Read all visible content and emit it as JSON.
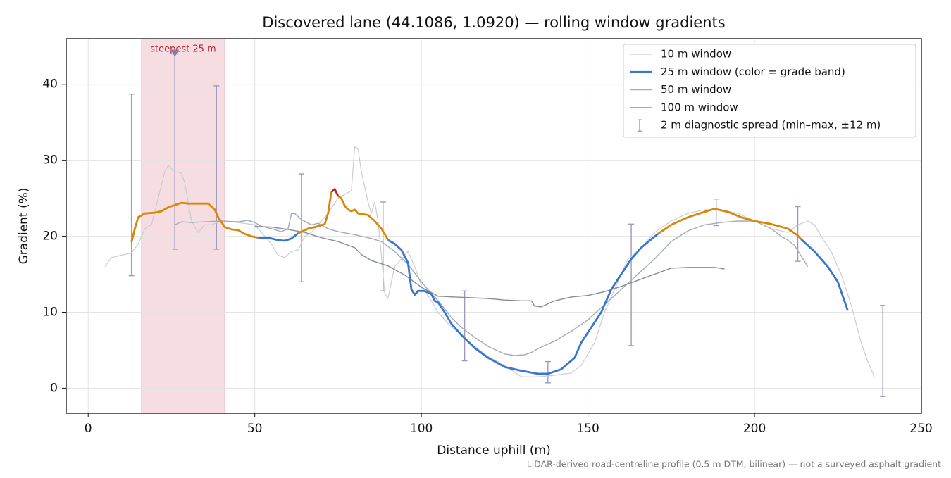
{
  "chart_data": {
    "type": "line",
    "title": "Discovered lane (44.1086, 1.0920) — rolling window gradients",
    "x_label": "Distance uphill (m)",
    "y_label": "Gradient (%)",
    "footnote": "LiDAR-derived road-centreline profile (0.5 m DTM, bilinear) — not a surveyed asphalt gradient",
    "xlim": [
      -6.6,
      250.1
    ],
    "ylim": [
      -3.3,
      46
    ],
    "xticks": [
      0,
      50,
      100,
      150,
      200,
      250
    ],
    "yticks": [
      0,
      10,
      20,
      30,
      40
    ],
    "grid": true,
    "legend": "upper right",
    "highlight": {
      "label": "steepest 25 m",
      "x": [
        16,
        41
      ],
      "color": "#e8b4bd",
      "marker_x": 26,
      "marker_y": 44,
      "marker_color": "#8c7aa0"
    },
    "series": [
      {
        "name": "10 m window",
        "color": "#c8ccd4",
        "width": 1.2,
        "x": [
          5,
          7,
          10,
          13,
          15,
          17,
          19,
          21,
          23,
          24,
          26,
          28,
          29,
          31,
          33,
          35,
          37,
          40,
          45,
          50,
          53,
          55,
          57,
          59,
          61,
          63,
          65,
          67,
          69,
          72,
          75,
          77,
          79,
          80,
          81,
          82,
          84,
          85,
          86,
          87,
          88,
          89,
          90,
          91,
          92,
          94,
          96,
          98,
          100,
          103,
          105,
          108,
          112,
          116,
          120,
          125,
          130,
          135,
          140,
          145,
          148,
          150,
          152,
          155,
          158,
          162,
          165,
          170,
          175,
          180,
          185,
          190,
          195,
          200,
          205,
          210,
          213,
          216,
          218,
          220,
          223,
          226,
          229,
          232,
          234,
          236
        ],
        "values": [
          16,
          17.2,
          17.5,
          17.8,
          19,
          21,
          21.5,
          25,
          28.5,
          29.3,
          28.5,
          28.3,
          27,
          22,
          20.5,
          21.5,
          21.5,
          22,
          21.8,
          21.5,
          20,
          19,
          17.5,
          17.2,
          18,
          18.2,
          20,
          20.5,
          21.5,
          23,
          25,
          25.5,
          26,
          31.8,
          31.5,
          28.5,
          24.5,
          23,
          24.5,
          22,
          17.5,
          12.5,
          11.8,
          14,
          16,
          17,
          18,
          16,
          13.5,
          11.5,
          10,
          8.5,
          7,
          5.5,
          4.2,
          3,
          1.5,
          1.5,
          1.7,
          2,
          3,
          4.5,
          6,
          10,
          13,
          17,
          18,
          20.5,
          22,
          23,
          23.5,
          23.5,
          23,
          22,
          21,
          20.5,
          21.5,
          22,
          21.5,
          20,
          18,
          15,
          11,
          6,
          3.5,
          1.5
        ]
      },
      {
        "name": "25 m window (color = grade band)",
        "color": "#3a75d0",
        "width": 2.8,
        "x": [
          13,
          14,
          15,
          17,
          20,
          22,
          24,
          26,
          28,
          30,
          33,
          36,
          38,
          39,
          41,
          43,
          45,
          47,
          49,
          51,
          54,
          57,
          59,
          61,
          63,
          66,
          69,
          71,
          72,
          73,
          74,
          75,
          76,
          77,
          78,
          79,
          80,
          81,
          84,
          86,
          88,
          89,
          90,
          92,
          94,
          96,
          97,
          98,
          99,
          101,
          103,
          104,
          105,
          107,
          109,
          112,
          116,
          120,
          125,
          130,
          135,
          138,
          142,
          146,
          148,
          151,
          154,
          157,
          160,
          163,
          166,
          169,
          171,
          175,
          180,
          185,
          188,
          192,
          196,
          200,
          205,
          210,
          213,
          214,
          218,
          222,
          225,
          228
        ],
        "values": [
          19.2,
          21,
          22.5,
          23,
          23.1,
          23.3,
          23.8,
          24.1,
          24.4,
          24.3,
          24.3,
          24.3,
          23.5,
          22.5,
          21.2,
          20.9,
          20.8,
          20.3,
          20,
          19.8,
          19.8,
          19.5,
          19.4,
          19.7,
          20.4,
          21,
          21.3,
          21.6,
          23,
          25.8,
          26.2,
          25.3,
          25,
          24,
          23.5,
          23.3,
          23.5,
          23,
          22.8,
          22,
          21,
          20.3,
          19.5,
          19,
          18.2,
          16.5,
          13,
          12.3,
          12.8,
          12.8,
          12.4,
          11.5,
          11.3,
          10,
          8.5,
          7,
          5.3,
          4,
          2.8,
          2.3,
          1.9,
          1.9,
          2.5,
          4,
          6,
          8,
          10,
          13,
          15,
          17,
          18.5,
          19.6,
          20.3,
          21.5,
          22.5,
          23.2,
          23.6,
          23.2,
          22.5,
          22,
          21.6,
          21,
          20.1,
          19.6,
          18,
          16,
          14,
          10.2
        ],
        "colors": [
          "#d9860a",
          "#d9860a",
          "#d9860a",
          "#d9860a",
          "#d9860a",
          "#d9860a",
          "#d9860a",
          "#d9860a",
          "#d9860a",
          "#d9860a",
          "#d9860a",
          "#d9860a",
          "#d9860a",
          "#d9860a",
          "#d9860a",
          "#d9860a",
          "#d9860a",
          "#d9860a",
          "#d9860a",
          "#3a75d0",
          "#3a75d0",
          "#3a75d0",
          "#3a75d0",
          "#3a75d0",
          "#d9860a",
          "#d9860a",
          "#d9860a",
          "#d9860a",
          "#d9860a",
          "#c0202a",
          "#c0202a",
          "#d9860a",
          "#d9860a",
          "#d9860a",
          "#d9860a",
          "#d9860a",
          "#d9860a",
          "#d9860a",
          "#d9860a",
          "#d9860a",
          "#d9860a",
          "#d9860a",
          "#3a75d0",
          "#3a75d0",
          "#3a75d0",
          "#3a75d0",
          "#3a75d0",
          "#3a75d0",
          "#3a75d0",
          "#3a75d0",
          "#3a75d0",
          "#3a75d0",
          "#3a75d0",
          "#3a75d0",
          "#3a75d0",
          "#3a75d0",
          "#3a75d0",
          "#3a75d0",
          "#3a75d0",
          "#3a75d0",
          "#3a75d0",
          "#3a75d0",
          "#3a75d0",
          "#3a75d0",
          "#3a75d0",
          "#3a75d0",
          "#3a75d0",
          "#3a75d0",
          "#3a75d0",
          "#3a75d0",
          "#3a75d0",
          "#3a75d0",
          "#d9860a",
          "#d9860a",
          "#d9860a",
          "#d9860a",
          "#d9860a",
          "#d9860a",
          "#d9860a",
          "#d9860a",
          "#d9860a",
          "#d9860a",
          "#d9860a",
          "#3a75d0",
          "#3a75d0",
          "#3a75d0",
          "#3a75d0",
          "#3a75d0"
        ]
      },
      {
        "name": "50 m window",
        "color": "#a3aabb",
        "width": 1.4,
        "x": [
          26,
          28,
          31,
          35,
          40,
          45,
          48,
          50,
          52,
          55,
          58,
          60,
          61,
          62,
          64,
          67,
          69,
          72,
          75,
          80,
          85,
          88,
          92,
          96,
          100,
          103,
          106,
          109,
          112,
          116,
          120,
          125,
          128,
          131,
          133,
          135,
          140,
          145,
          150,
          155,
          160,
          165,
          170,
          175,
          180,
          185,
          190,
          195,
          200,
          205,
          208,
          210,
          212,
          216
        ],
        "values": [
          21.5,
          21.9,
          21.8,
          21.9,
          22,
          21.9,
          22.1,
          21.8,
          21.3,
          21,
          20.6,
          21,
          23,
          23,
          22.2,
          21.5,
          21.7,
          21,
          20.6,
          20.2,
          19.7,
          19.3,
          18,
          16.3,
          14,
          12.5,
          11,
          9.3,
          8,
          6.7,
          5.5,
          4.5,
          4.3,
          4.4,
          4.7,
          5.2,
          6.2,
          7.5,
          9,
          11,
          13,
          15,
          17,
          19.3,
          20.7,
          21.5,
          21.8,
          22,
          22,
          21,
          20,
          19.5,
          18.8,
          16
        ]
      },
      {
        "name": "100 m window",
        "color": "#858b9a",
        "width": 1.4,
        "x": [
          50,
          55,
          60,
          65,
          70,
          75,
          80,
          82,
          85,
          90,
          95,
          100,
          105,
          110,
          115,
          120,
          125,
          130,
          133,
          134,
          136,
          140,
          145,
          150,
          155,
          160,
          165,
          170,
          175,
          180,
          185,
          188,
          191
        ],
        "values": [
          21.3,
          21.2,
          20.9,
          20.5,
          19.8,
          19.3,
          18.5,
          17.6,
          16.8,
          16.1,
          14.9,
          13.3,
          12.1,
          12,
          11.9,
          11.8,
          11.6,
          11.5,
          11.5,
          10.8,
          10.7,
          11.5,
          12,
          12.2,
          12.7,
          13.4,
          14.2,
          15,
          15.8,
          15.9,
          15.9,
          15.9,
          15.7
        ]
      }
    ],
    "spread": {
      "name": "2 m diagnostic spread (min–max, ±12 m)",
      "color": "#9f98bd",
      "x": [
        13,
        26,
        38.5,
        64,
        88.5,
        113,
        138,
        163,
        188.5,
        213,
        238.5
      ],
      "low": [
        14.8,
        18.3,
        18.3,
        14,
        12.8,
        3.6,
        0.7,
        5.6,
        21.4,
        16.7,
        -1.1
      ],
      "high": [
        38.7,
        44,
        39.8,
        28.2,
        24.5,
        12.8,
        3.5,
        21.6,
        24.9,
        23.9,
        10.9
      ]
    }
  }
}
